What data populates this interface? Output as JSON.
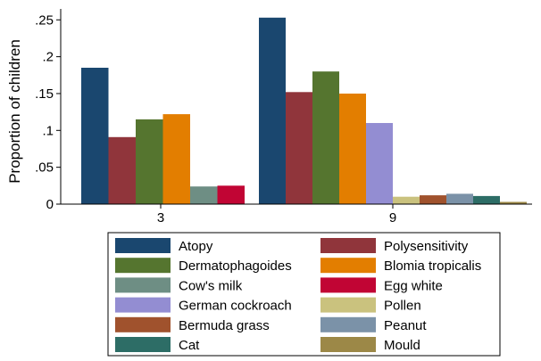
{
  "chart_data": {
    "type": "bar",
    "title": "",
    "xlabel": "",
    "ylabel": "Proportion of children",
    "ylim": [
      0,
      0.26
    ],
    "yticks": [
      0,
      0.05,
      0.1,
      0.15,
      0.2,
      0.25
    ],
    "ytick_labels": [
      "0",
      ".05",
      ".1",
      ".15",
      ".2",
      ".25"
    ],
    "grid": false,
    "legend_placement": "bottom",
    "groups": [
      {
        "label": "3",
        "bars": [
          {
            "series": "Atopy",
            "value": 0.185
          },
          {
            "series": "Polysensitivity",
            "value": 0.091
          },
          {
            "series": "Dermatophagoides",
            "value": 0.115
          },
          {
            "series": "Blomia tropicalis",
            "value": 0.122
          },
          {
            "series": "Cow's milk",
            "value": 0.024
          },
          {
            "series": "Egg white",
            "value": 0.025
          }
        ]
      },
      {
        "label": "9",
        "bars": [
          {
            "series": "Atopy",
            "value": 0.253
          },
          {
            "series": "Polysensitivity",
            "value": 0.152
          },
          {
            "series": "Dermatophagoides",
            "value": 0.18
          },
          {
            "series": "Blomia tropicalis",
            "value": 0.15
          },
          {
            "series": "German cockroach",
            "value": 0.11
          },
          {
            "series": "Pollen",
            "value": 0.01
          },
          {
            "series": "Bermuda grass",
            "value": 0.012
          },
          {
            "series": "Peanut",
            "value": 0.014
          },
          {
            "series": "Cat",
            "value": 0.011
          },
          {
            "series": "Mould",
            "value": 0.003
          }
        ]
      }
    ],
    "series": [
      {
        "name": "Atopy",
        "color": "#1a476f"
      },
      {
        "name": "Polysensitivity",
        "color": "#90353b"
      },
      {
        "name": "Dermatophagoides",
        "color": "#55752f"
      },
      {
        "name": "Blomia tropicalis",
        "color": "#e37e00"
      },
      {
        "name": "Cow's milk",
        "color": "#6e8e84"
      },
      {
        "name": "Egg white",
        "color": "#c10534"
      },
      {
        "name": "German cockroach",
        "color": "#938dd2"
      },
      {
        "name": "Pollen",
        "color": "#cac27e"
      },
      {
        "name": "Bermuda grass",
        "color": "#a0522d"
      },
      {
        "name": "Peanut",
        "color": "#7b92a8"
      },
      {
        "name": "Cat",
        "color": "#2d6d66"
      },
      {
        "name": "Mould",
        "color": "#9c8847"
      }
    ]
  }
}
